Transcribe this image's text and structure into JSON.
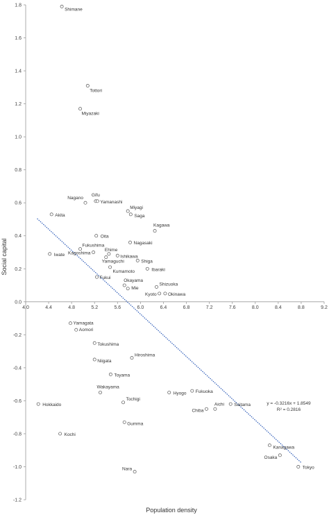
{
  "chart_data": {
    "type": "scatter",
    "xlabel": "Population density",
    "ylabel": "Social capital",
    "xlim": [
      4.0,
      9.2
    ],
    "ylim": [
      -1.2,
      1.8
    ],
    "x_ticks": [
      "4.0",
      "4.4",
      "4.8",
      "5.2",
      "5.6",
      "6.0",
      "6.4",
      "6.8",
      "7.2",
      "7.6",
      "8.0",
      "8.4",
      "8.8",
      "9.2"
    ],
    "y_ticks": [
      "1.8",
      "1.6",
      "1.4",
      "1.2",
      "1.0",
      "0.8",
      "0.6",
      "0.4",
      "0.2",
      "0.0",
      "-0.2",
      "-0.4",
      "-0.6",
      "-0.8",
      "-1.0",
      "-1.2"
    ],
    "grid": false,
    "trendline": {
      "slope": -0.3216,
      "intercept": 1.8549,
      "x_range": [
        4.2,
        8.8
      ],
      "equation": "y = -0.3216x + 1.8549",
      "r_squared": "R² = 0.2816"
    },
    "points": [
      {
        "label": "Shimane",
        "x": 4.63,
        "y": 1.79
      },
      {
        "label": "Tottori",
        "x": 5.08,
        "y": 1.31
      },
      {
        "label": "Miyazaki",
        "x": 4.95,
        "y": 1.17
      },
      {
        "label": "Nagano",
        "x": 5.04,
        "y": 0.6
      },
      {
        "label": "Gifu",
        "x": 5.22,
        "y": 0.61
      },
      {
        "label": "Yamanashi",
        "x": 5.25,
        "y": 0.61
      },
      {
        "label": "Miyagi",
        "x": 5.78,
        "y": 0.55
      },
      {
        "label": "Saga",
        "x": 5.83,
        "y": 0.53
      },
      {
        "label": "Akita",
        "x": 4.45,
        "y": 0.53
      },
      {
        "label": "Kagawa",
        "x": 6.25,
        "y": 0.43
      },
      {
        "label": "Oita",
        "x": 5.23,
        "y": 0.4
      },
      {
        "label": "Nagasaki",
        "x": 5.82,
        "y": 0.36
      },
      {
        "label": "Fukushima",
        "x": 4.95,
        "y": 0.32
      },
      {
        "label": "Ehime",
        "x": 5.45,
        "y": 0.29
      },
      {
        "label": "Iwate",
        "x": 4.42,
        "y": 0.29
      },
      {
        "label": "Kagoshima",
        "x": 5.18,
        "y": 0.3
      },
      {
        "label": "Ishikawa",
        "x": 5.6,
        "y": 0.28
      },
      {
        "label": "Yamaguchi",
        "x": 5.4,
        "y": 0.27
      },
      {
        "label": "Shiga",
        "x": 5.95,
        "y": 0.25
      },
      {
        "label": "Kumamoto",
        "x": 5.47,
        "y": 0.21
      },
      {
        "label": "Ibaraki",
        "x": 6.12,
        "y": 0.2
      },
      {
        "label": "Fukui",
        "x": 5.24,
        "y": 0.15
      },
      {
        "label": "Okayama",
        "x": 5.72,
        "y": 0.1
      },
      {
        "label": "Shizuoka",
        "x": 6.28,
        "y": 0.09
      },
      {
        "label": "Mie",
        "x": 5.78,
        "y": 0.08
      },
      {
        "label": "Kyoto",
        "x": 6.33,
        "y": 0.05
      },
      {
        "label": "Okinawa",
        "x": 6.43,
        "y": 0.05
      },
      {
        "label": "Yamagata",
        "x": 4.78,
        "y": -0.13
      },
      {
        "label": "Aomori",
        "x": 4.88,
        "y": -0.17
      },
      {
        "label": "Tokushima",
        "x": 5.2,
        "y": -0.25
      },
      {
        "label": "Niigata",
        "x": 5.2,
        "y": -0.35
      },
      {
        "label": "Hiroshima",
        "x": 5.85,
        "y": -0.34
      },
      {
        "label": "Toyama",
        "x": 5.48,
        "y": -0.44
      },
      {
        "label": "Wakayama",
        "x": 5.3,
        "y": -0.55
      },
      {
        "label": "Hyogo",
        "x": 6.5,
        "y": -0.55
      },
      {
        "label": "Fukuoka",
        "x": 6.9,
        "y": -0.54
      },
      {
        "label": "Tochigi",
        "x": 5.7,
        "y": -0.61
      },
      {
        "label": "Hokkaido",
        "x": 4.22,
        "y": -0.62
      },
      {
        "label": "Saitama",
        "x": 7.57,
        "y": -0.62
      },
      {
        "label": "Chiba",
        "x": 7.15,
        "y": -0.65
      },
      {
        "label": "Aichi",
        "x": 7.3,
        "y": -0.65
      },
      {
        "label": "Gumma",
        "x": 5.72,
        "y": -0.73
      },
      {
        "label": "Kochi",
        "x": 4.6,
        "y": -0.8
      },
      {
        "label": "Kanagawa",
        "x": 8.25,
        "y": -0.87
      },
      {
        "label": "Osaka",
        "x": 8.43,
        "y": -0.93
      },
      {
        "label": "Nara",
        "x": 5.9,
        "y": -1.03
      },
      {
        "label": "Tokyo",
        "x": 8.75,
        "y": -1.0
      }
    ]
  },
  "colors": {
    "axis": "#9a9a9a",
    "marker_stroke": "#555555",
    "trendline": "#2e5cb8",
    "text": "#333333"
  }
}
